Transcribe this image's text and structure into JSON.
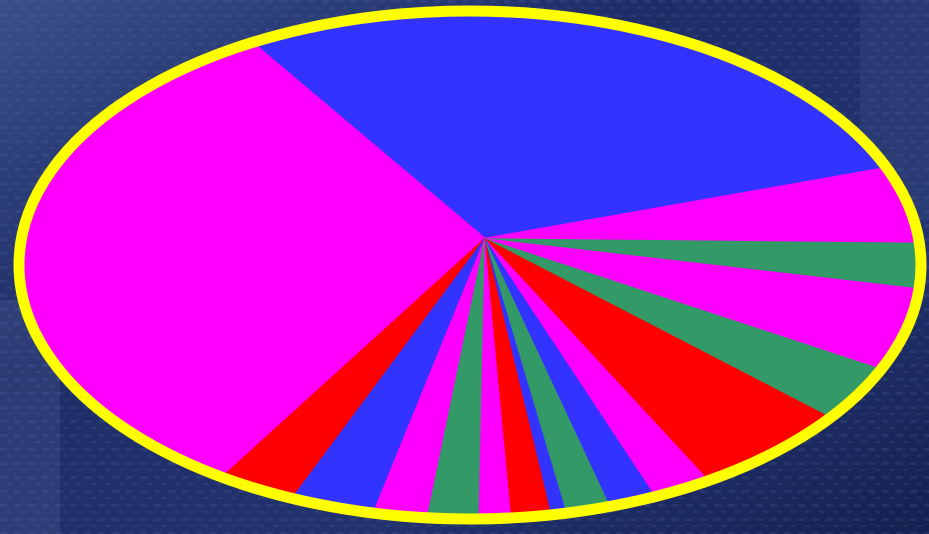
{
  "chart_data": {
    "type": "pie",
    "style": "elliptical, no labels, no legend",
    "background_color": "#1c2a5e",
    "outline_color": "#ffff00",
    "palette": {
      "blue": "#3333ff",
      "magenta": "#ff00ff",
      "red": "#ff0000",
      "green": "#339966"
    },
    "slices": [
      {
        "color": "#3333ff",
        "value": 33.77
      },
      {
        "color": "#ff00ff",
        "value": 21.42
      },
      {
        "color": "#ff0000",
        "value": 2.91
      },
      {
        "color": "#3333ff",
        "value": 3.75
      },
      {
        "color": "#ff00ff",
        "value": 2.72
      },
      {
        "color": "#339966",
        "value": 2.72
      },
      {
        "color": "#ff00ff",
        "value": 1.73
      },
      {
        "color": "#ff0000",
        "value": 2.11
      },
      {
        "color": "#3333ff",
        "value": 0.79
      },
      {
        "color": "#339966",
        "value": 2.21
      },
      {
        "color": "#3333ff",
        "value": 2.18
      },
      {
        "color": "#ff00ff",
        "value": 2.43
      },
      {
        "color": "#ff0000",
        "value": 5.16
      },
      {
        "color": "#339966",
        "value": 2.38
      },
      {
        "color": "#ff00ff",
        "value": 3.03
      },
      {
        "color": "#339966",
        "value": 1.56
      },
      {
        "color": "#ff00ff",
        "value": 2.75
      }
    ]
  }
}
